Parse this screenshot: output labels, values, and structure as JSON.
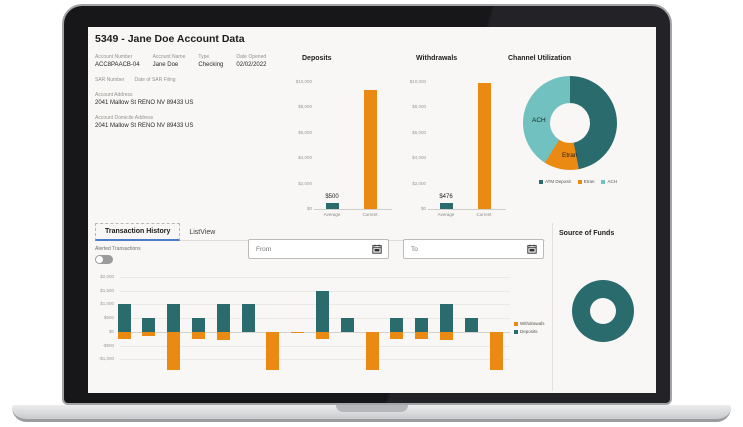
{
  "window": {
    "title": "5349 - Jane Doe Account Data"
  },
  "account": {
    "fields": [
      {
        "label": "Account Number",
        "value": "ACC8PAACB-04"
      },
      {
        "label": "Account Name",
        "value": "Jane Doe"
      },
      {
        "label": "Type",
        "value": "Checking"
      },
      {
        "label": "Date Opened",
        "value": "02/02/2022"
      }
    ],
    "sar": [
      {
        "label": "SAR Number",
        "value": ""
      },
      {
        "label": "Date of SAR Filing",
        "value": ""
      }
    ],
    "address_label": "Account Address",
    "address_value": "2041 Mallow St RENO NV 89433 US",
    "domicile_label": "Account Domicile Address",
    "domicile_value": "2041 Mallow St RENO NV 89433 US"
  },
  "tabs": [
    {
      "label": "Transaction History",
      "active": true
    },
    {
      "label": "ListView",
      "active": false
    }
  ],
  "alerted_toggle": {
    "label": "Alerted Transactions",
    "state": "off"
  },
  "filters": {
    "from_placeholder": "From",
    "to_placeholder": "To"
  },
  "colors": {
    "teal": "#2A6C6E",
    "teal_light": "#70C1BF",
    "orange": "#EA8A12",
    "tab_underline": "#4C7CC9",
    "screen_bg": "#f8f7f5"
  },
  "chart_data": [
    {
      "type": "bar",
      "title": "Deposits",
      "categories": [
        "Average",
        "Current"
      ],
      "values": [
        500,
        9400
      ],
      "data_labels": [
        "$500",
        ""
      ],
      "bar_colors": [
        "#2A6C6E",
        "#EA8A12"
      ],
      "yticks": [
        "$10,000",
        "$8,000",
        "$6,000",
        "$4,000",
        "$2,000",
        "$0"
      ],
      "tick_values": [
        10000,
        8000,
        6000,
        4000,
        2000,
        0
      ],
      "ylim": [
        0,
        10000
      ]
    },
    {
      "type": "bar",
      "title": "Withdrawals",
      "categories": [
        "Average",
        "Current"
      ],
      "values": [
        476,
        9900
      ],
      "data_labels": [
        "$476",
        ""
      ],
      "bar_colors": [
        "#2A6C6E",
        "#EA8A12"
      ],
      "yticks": [
        "$10,000",
        "$8,000",
        "$6,000",
        "$4,000",
        "$2,000",
        "$0"
      ],
      "tick_values": [
        10000,
        8000,
        6000,
        4000,
        2000,
        0
      ],
      "ylim": [
        0,
        10000
      ]
    },
    {
      "type": "pie",
      "title": "Channel Utilization",
      "donut": true,
      "slices": [
        {
          "label": "ATM Deposit",
          "value": 47,
          "color": "#2A6C6E"
        },
        {
          "label": "Etran",
          "value": 12,
          "color": "#EA8A12"
        },
        {
          "label": "ACH",
          "value": 41,
          "color": "#70C1BF"
        }
      ],
      "legend_position": "bottom"
    },
    {
      "type": "bar",
      "title": "",
      "stacked": true,
      "series": [
        {
          "name": "Withdrawals",
          "color": "#EA8A12",
          "values": [
            -250,
            -150,
            -1400,
            -250,
            -300,
            0,
            -1400,
            -30,
            -250,
            0,
            -1400,
            -250,
            -250,
            -300,
            0,
            -1400
          ]
        },
        {
          "name": "Deposits",
          "color": "#2A6C6E",
          "values": [
            1000,
            500,
            1000,
            500,
            1000,
            1000,
            0,
            0,
            1500,
            500,
            0,
            500,
            500,
            1000,
            500,
            0
          ]
        }
      ],
      "yticks": [
        "$2,000",
        "$1,500",
        "$1,000",
        "$500",
        "$0",
        "-$500",
        "-$1,000"
      ],
      "tick_values": [
        2000,
        1500,
        1000,
        500,
        0,
        -500,
        -1000
      ],
      "ylim": [
        -1500,
        2000
      ],
      "legend_position": "right",
      "grid": true
    },
    {
      "type": "pie",
      "title": "Source of Funds",
      "donut": true,
      "slices": [
        {
          "label": "",
          "value": 100,
          "color": "#2A6C6E"
        }
      ]
    }
  ]
}
